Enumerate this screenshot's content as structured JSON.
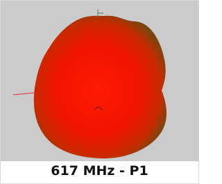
{
  "caption": "617 MHz - P1"
}
